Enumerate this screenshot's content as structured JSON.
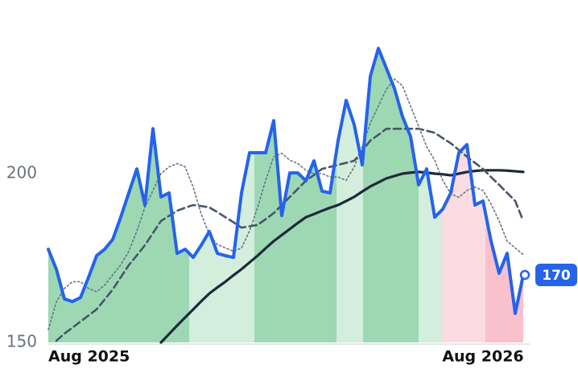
{
  "chart_data": {
    "type": "line",
    "categories": [
      "Aug 2025",
      null,
      null,
      null,
      null,
      null,
      null,
      null,
      null,
      null,
      null,
      null,
      null,
      null,
      null,
      null,
      null,
      null,
      null,
      null,
      null,
      null,
      null,
      null,
      null,
      null,
      null,
      null,
      null,
      null,
      null,
      null,
      null,
      null,
      null,
      null,
      null,
      null,
      null,
      null,
      null,
      null,
      null,
      null,
      null,
      null,
      null,
      null,
      null,
      null,
      null,
      null,
      null,
      null,
      "Aug 2026",
      null,
      null,
      null,
      null,
      null
    ],
    "series": [
      {
        "color": "#2563eb",
        "values": [
          177.6,
          171.7,
          162.9,
          162.1,
          163.3,
          169.3,
          175.7,
          177.6,
          180.5,
          187.1,
          194.3,
          201.4,
          190.7,
          213.3,
          193.1,
          194.3,
          176.4,
          177.6,
          175.2,
          178.8,
          182.9,
          176.4,
          175.7,
          175.2,
          194.3,
          206.2,
          206.2,
          206.2,
          215.7,
          187.6,
          200.2,
          200.2,
          197.9,
          203.8,
          194.8,
          194.3,
          209.8,
          221.7,
          214.5,
          202.6,
          228.8,
          237.1,
          231.2,
          225.2,
          216.9,
          211,
          196.7,
          201.4,
          187.1,
          189.5,
          194.3,
          206.2,
          208.6,
          190.7,
          191.9,
          180,
          170.5,
          176.4,
          158.6,
          170
        ]
      },
      {
        "color": "#64748b",
        "values": [
          153.8,
          162,
          166,
          168,
          168,
          166,
          165,
          167,
          170,
          173,
          177,
          183,
          190,
          195,
          200,
          202,
          203,
          202,
          196,
          188,
          182,
          179,
          178,
          177,
          178,
          183,
          190,
          198,
          205,
          206,
          204,
          203,
          201,
          200,
          200,
          199,
          199,
          198,
          202,
          208,
          215,
          220,
          225,
          228,
          226,
          220,
          214,
          208,
          204,
          198,
          194,
          193,
          195,
          196,
          195,
          191,
          186,
          180,
          178,
          176
        ]
      },
      {
        "color": "#475569",
        "values": [
          null,
          150.5,
          152.6,
          154.4,
          156.2,
          158,
          159.8,
          162.7,
          165.7,
          169.3,
          172.9,
          175.8,
          178.8,
          182.4,
          186,
          187.5,
          189,
          189.9,
          190.7,
          190.4,
          190,
          188.6,
          187.1,
          185.6,
          184,
          184.4,
          184.8,
          186.5,
          188.3,
          190.7,
          193.1,
          195.5,
          197.9,
          199.6,
          201.4,
          202,
          202.6,
          203.2,
          203.8,
          206.8,
          209.8,
          211.5,
          213.3,
          213.3,
          213.3,
          213.3,
          213.3,
          212.7,
          212.1,
          210.5,
          209,
          207,
          205,
          203.2,
          201.4,
          199,
          196.7,
          194.3,
          191.9,
          186
        ]
      },
      {
        "color": "#1e293b",
        "values": [
          null,
          null,
          null,
          null,
          null,
          null,
          null,
          null,
          null,
          null,
          null,
          null,
          null,
          null,
          150,
          152.5,
          155,
          157.4,
          159.8,
          162.2,
          164.5,
          166.3,
          168,
          169.9,
          171.7,
          173.7,
          175.7,
          177.9,
          180,
          181.8,
          183.6,
          185.4,
          187.1,
          188,
          189,
          189.9,
          190.7,
          191.9,
          193.1,
          194.7,
          196.2,
          197.4,
          198.6,
          199.3,
          200,
          200.3,
          200.5,
          200.3,
          200,
          199.8,
          199.5,
          200,
          200.5,
          200.8,
          201,
          201,
          201,
          200.9,
          200.7,
          200.5
        ]
      }
    ],
    "shading": [
      {
        "from": 0,
        "to": 17.5,
        "color": "#9dd8b3"
      },
      {
        "from": 17.5,
        "to": 25.6,
        "color": "#d3eedc"
      },
      {
        "from": 25.6,
        "to": 35.8,
        "color": "#9dd8b3"
      },
      {
        "from": 35.8,
        "to": 39.1,
        "color": "#d3eedc"
      },
      {
        "from": 39.1,
        "to": 46,
        "color": "#9dd8b3"
      },
      {
        "from": 46,
        "to": 48.9,
        "color": "#d3eedc"
      },
      {
        "from": 48.9,
        "to": 54.3,
        "color": "#fcdce3"
      },
      {
        "from": 54.3,
        "to": 59,
        "color": "#f9c1cc"
      }
    ],
    "ylim": [
      150,
      245
    ],
    "yticks": [
      150,
      200
    ]
  }
}
